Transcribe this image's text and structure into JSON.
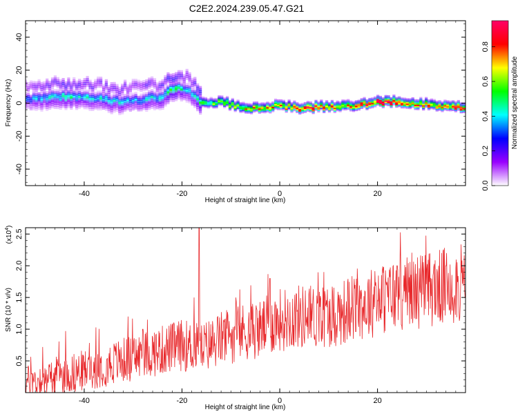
{
  "figure": {
    "title": "C2E2.2024.239.05.47.G21"
  },
  "chart_data": [
    {
      "type": "heatmap",
      "xlabel": "Height of straight line (km)",
      "ylabel": "Frequency (Hz)",
      "xlim": [
        -52,
        38
      ],
      "ylim": [
        -50,
        50
      ],
      "xticks": [
        -40,
        -20,
        0,
        20
      ],
      "yticks": [
        -40,
        -20,
        0,
        20,
        40
      ],
      "colorbar": {
        "label": "Normalized spectral amplitude",
        "range": [
          0,
          0.95
        ],
        "ticks": [
          0.0,
          0.2,
          0.4,
          0.6,
          0.8
        ],
        "tick_labels": [
          "0.0",
          "0.2",
          "0.4",
          "0.6",
          "0.8"
        ],
        "colors": [
          "#ffffff",
          "#9900ff",
          "#0000ff",
          "#00ffff",
          "#00ff00",
          "#ffff00",
          "#ff0000",
          "#ff0066"
        ]
      },
      "ridge": {
        "x": [
          -52,
          -48,
          -44,
          -40,
          -36,
          -32,
          -28,
          -24,
          -22,
          -20,
          -18,
          -16,
          -12,
          -8,
          -4,
          0,
          4,
          8,
          12,
          16,
          20,
          24,
          28,
          32,
          36,
          38
        ],
        "y": [
          2,
          3,
          4,
          3,
          2,
          1,
          2,
          4,
          8,
          9,
          6,
          0,
          1,
          -2,
          -3,
          -1,
          -3,
          -2,
          -2,
          -1,
          1,
          1,
          0,
          -1,
          -2,
          -2
        ],
        "peak_amplitude": [
          0.35,
          0.4,
          0.45,
          0.42,
          0.4,
          0.42,
          0.4,
          0.45,
          0.5,
          0.45,
          0.4,
          0.55,
          0.6,
          0.7,
          0.75,
          0.7,
          0.85,
          0.8,
          0.75,
          0.8,
          0.9,
          0.85,
          0.8,
          0.75,
          0.85,
          0.8
        ]
      }
    },
    {
      "type": "line",
      "xlabel": "Height of straight line (km)",
      "ylabel": "SNR (10 * v/v)",
      "y_multiplier_label": "(x10",
      "y_multiplier_exp": "4",
      "y_multiplier_close": ")",
      "xlim": [
        -52,
        38
      ],
      "ylim": [
        0,
        2.6
      ],
      "xticks": [
        -40,
        -20,
        0,
        20
      ],
      "yticks": [
        0.5,
        1.0,
        1.5,
        2.0,
        2.5
      ],
      "ytick_labels": [
        "0.5",
        "1.0",
        "1.5",
        "2.0",
        "2.5"
      ],
      "series": [
        {
          "color": "#e8272a",
          "trend_x": [
            -52,
            -45,
            -40,
            -35,
            -30,
            -25,
            -20,
            -16,
            -12,
            -8,
            -4,
            0,
            4,
            8,
            12,
            16,
            20,
            24,
            28,
            32,
            36,
            38
          ],
          "trend_y": [
            0.15,
            0.25,
            0.35,
            0.45,
            0.55,
            0.65,
            0.75,
            0.7,
            0.85,
            0.95,
            1.0,
            1.15,
            1.2,
            1.2,
            1.25,
            1.35,
            1.45,
            1.55,
            1.6,
            1.65,
            1.7,
            1.72
          ],
          "spikes": [
            {
              "x": -16.5,
              "y": 2.6
            },
            {
              "x": -17.5,
              "y": 1.5
            },
            {
              "x": -31,
              "y": 1.2
            },
            {
              "x": -28,
              "y": 1.0
            },
            {
              "x": -9,
              "y": 1.5
            },
            {
              "x": -2,
              "y": 1.8
            },
            {
              "x": 9,
              "y": 1.9
            },
            {
              "x": 24,
              "y": 2.0
            },
            {
              "x": 34,
              "y": 2.0
            }
          ]
        }
      ]
    }
  ]
}
